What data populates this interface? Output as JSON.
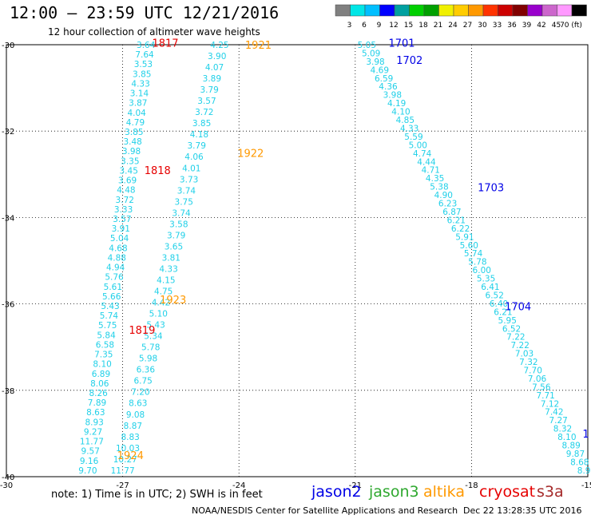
{
  "header": {
    "title": "12:00 – 23:59 UTC 12/21/2016",
    "subtitle": "12 hour collection of altimeter wave heights"
  },
  "color_scale": {
    "labels": [
      "3",
      "6",
      "9",
      "12",
      "15",
      "18",
      "21",
      "24",
      "27",
      "30",
      "33",
      "36",
      "39",
      "42",
      "45",
      "70 (ft)"
    ],
    "colors": [
      "#808080",
      "#00e6e6",
      "#00bfff",
      "#0000ff",
      "#00a0a0",
      "#00d000",
      "#00a000",
      "#f0f000",
      "#ffcc00",
      "#ff9900",
      "#ff3300",
      "#cc0000",
      "#800000",
      "#9900cc",
      "#cc66cc",
      "#ff99ff",
      "#000000"
    ]
  },
  "map": {
    "lon_range": [
      -30,
      -15
    ],
    "lat_range": [
      -40,
      -30
    ],
    "x_ticks": [
      "-30",
      "-27",
      "-24",
      "-21",
      "-18",
      "-15"
    ],
    "y_ticks": [
      "-30",
      "-32",
      "-34",
      "-36",
      "-38",
      "-40"
    ],
    "grid": "dotted"
  },
  "tracks": [
    {
      "name": "cryosat-1817-1819-pass",
      "color": "#20d0e8",
      "lon_start": -26.4,
      "lon_end": -27.9,
      "values": [
        "3.64",
        "7.64",
        "3.53",
        "3.85",
        "4.33",
        "3.14",
        "3.87",
        "4.04",
        "4.79",
        "3.85",
        "3.48",
        "3.98",
        "3.35",
        "3.45",
        "3.69",
        "4.48",
        "3.72",
        "3.33",
        "3.57",
        "3.91",
        "5.04",
        "4.68",
        "4.88",
        "4.94",
        "5.76",
        "5.61",
        "5.66",
        "5.43",
        "5.74",
        "5.75",
        "5.84",
        "6.58",
        "7.35",
        "8.10",
        "6.89",
        "8.06",
        "8.26",
        "7.89",
        "8.63",
        "8.93",
        "9.27",
        "11.77",
        "9.57",
        "9.16",
        "9.70"
      ]
    },
    {
      "name": "altika-1921-1924-pass",
      "color": "#20d0e8",
      "lon_start": -24.5,
      "lon_end": -27.0,
      "values": [
        "4.25",
        "3.90",
        "4.07",
        "3.89",
        "3.79",
        "3.57",
        "3.72",
        "3.85",
        "4.18",
        "3.79",
        "4.06",
        "4.01",
        "3.73",
        "3.74",
        "3.75",
        "3.74",
        "3.58",
        "3.79",
        "3.65",
        "3.81",
        "4.33",
        "4.15",
        "4.75",
        "4.42",
        "5.10",
        "5.43",
        "5.34",
        "5.78",
        "5.98",
        "6.36",
        "6.75",
        "7.20",
        "8.63",
        "9.08",
        "8.87",
        "8.83",
        "10.03",
        "10.27",
        "11.77"
      ]
    },
    {
      "name": "jason2-1701-1704-pass",
      "color": "#20d0e8",
      "lon_start": -20.7,
      "lon_end": -15.1,
      "values": [
        "5.05",
        "5.09",
        "3.98",
        "4.69",
        "6.59",
        "4.36",
        "3.98",
        "4.19",
        "4.10",
        "4.85",
        "4.33",
        "5.59",
        "5.00",
        "4.74",
        "4.44",
        "4.71",
        "4.35",
        "5.38",
        "4.90",
        "6.23",
        "6.87",
        "6.21",
        "6.22",
        "5.91",
        "5.60",
        "5.74",
        "5.78",
        "6.00",
        "5.35",
        "6.41",
        "6.52",
        "6.40",
        "6.21",
        "5.95",
        "6.52",
        "7.22",
        "7.22",
        "7.03",
        "7.32",
        "7.70",
        "7.06",
        "7.56",
        "7.71",
        "7.12",
        "7.42",
        "7.27",
        "8.32",
        "8.10",
        "8.89",
        "9.87",
        "8.68",
        "8.9"
      ]
    }
  ],
  "track_labels": [
    {
      "text": "1817",
      "lon": -25.9,
      "lat": -29.95,
      "color": "#e60000"
    },
    {
      "text": "1818",
      "lon": -26.1,
      "lat": -32.9,
      "color": "#e60000"
    },
    {
      "text": "1819",
      "lon": -26.5,
      "lat": -36.6,
      "color": "#e60000"
    },
    {
      "text": "1921",
      "lon": -23.5,
      "lat": -30.0,
      "color": "#ff9900"
    },
    {
      "text": "1922",
      "lon": -23.7,
      "lat": -32.5,
      "color": "#ff9900"
    },
    {
      "text": "1923",
      "lon": -25.7,
      "lat": -35.9,
      "color": "#ff9900"
    },
    {
      "text": "1924",
      "lon": -26.8,
      "lat": -39.5,
      "color": "#ff9900"
    },
    {
      "text": "1701",
      "lon": -19.8,
      "lat": -29.95,
      "color": "#0000e6"
    },
    {
      "text": "1702",
      "lon": -19.6,
      "lat": -30.35,
      "color": "#0000e6"
    },
    {
      "text": "1703",
      "lon": -17.5,
      "lat": -33.3,
      "color": "#0000e6"
    },
    {
      "text": "1704",
      "lon": -16.8,
      "lat": -36.05,
      "color": "#0000e6"
    },
    {
      "text": "1",
      "lon": -15.05,
      "lat": -39.0,
      "color": "#0000e6"
    }
  ],
  "satellites": [
    "jason2",
    "jason3",
    "altika",
    "cryosat",
    "s3a"
  ],
  "footer": {
    "note": "note: 1) Time is in UTC; 2) SWH is in feet",
    "credit": "NOAA/NESDIS Center for Satellite Applications and Research",
    "timestamp": "Dec 22 13:28:35 UTC 2016"
  }
}
